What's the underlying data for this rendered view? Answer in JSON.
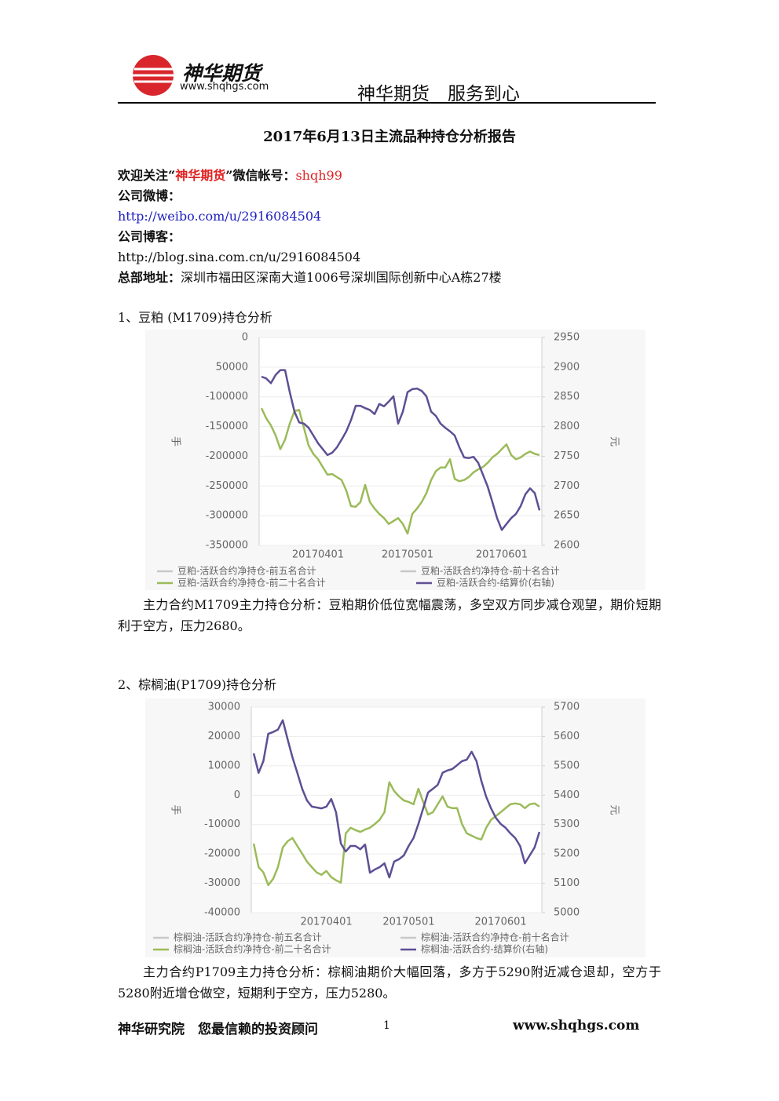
{
  "header": {
    "logo_name": "神华期货",
    "logo_url": "www.shqhgs.com",
    "slogan": "神华期货　服务到心"
  },
  "title": "2017年6月13日主流品种持仓分析报告",
  "contact": {
    "wechat_prefix": "欢迎关注“",
    "wechat_name": "神华期货",
    "wechat_mid": "”微信帐号：",
    "wechat_id": "shqh99",
    "weibo_label": "公司微博：",
    "weibo_url": "http://weibo.com/u/2916084504",
    "blog_label": "公司博客：",
    "blog_url": "http://blog.sina.com.cn/u/2916084504",
    "address_label": "总部地址：",
    "address": "深圳市福田区深南大道1006号深圳国际创新中心A栋27楼"
  },
  "sections": [
    {
      "heading": "1、豆粕 (M1709)持仓分析",
      "chart": {
        "type": "line",
        "categories": [
          null,
          null,
          null,
          null,
          null,
          null,
          null,
          null,
          null,
          null,
          null,
          null,
          "20170401",
          null,
          null,
          null,
          null,
          null,
          null,
          null,
          null,
          null,
          null,
          null,
          null,
          null,
          null,
          null,
          null,
          null,
          null,
          "20170501",
          null,
          null,
          null,
          null,
          null,
          null,
          null,
          null,
          null,
          null,
          null,
          null,
          null,
          null,
          null,
          null,
          null,
          null,
          null,
          "20170601",
          null,
          null,
          null,
          null,
          null,
          null,
          null,
          null
        ],
        "ylabel": "手",
        "y2label": "元",
        "ylim": [
          -350000,
          0
        ],
        "yticks": [
          0,
          {
            "value": -50000,
            "label": "50000"
          },
          -100000,
          -150000,
          -200000,
          -250000,
          -300000,
          -350000
        ],
        "y2lim": [
          2600,
          2950
        ],
        "y2ticks": [
          2950,
          2900,
          2850,
          2800,
          2750,
          2700,
          2650,
          2600
        ],
        "grid": true,
        "series": [
          {
            "name": "豆粕-活跃合约净持仓-前五名合计",
            "color": "#c8c8c8",
            "values": [
              null,
              null,
              null,
              null,
              null,
              null,
              null,
              null,
              null,
              null,
              null,
              null,
              null,
              null,
              null,
              null,
              null,
              null,
              null,
              null,
              null,
              null,
              null,
              null,
              null,
              null,
              null,
              null,
              null,
              null,
              null,
              null,
              null,
              null,
              null,
              null,
              null,
              null,
              null,
              null,
              null,
              null,
              null,
              null,
              null,
              null,
              null,
              null,
              null,
              null,
              null,
              null,
              null,
              null,
              null,
              null,
              null,
              null,
              null,
              null
            ]
          },
          {
            "name": "豆粕-活跃合约净持仓-前十名合计",
            "color": "#c8c8c8",
            "values": [
              null,
              null,
              null,
              null,
              null,
              null,
              null,
              null,
              null,
              null,
              null,
              null,
              null,
              null,
              null,
              null,
              null,
              null,
              null,
              null,
              null,
              null,
              null,
              null,
              null,
              null,
              null,
              null,
              null,
              null,
              null,
              null,
              null,
              null,
              null,
              null,
              null,
              null,
              null,
              null,
              null,
              null,
              null,
              null,
              null,
              null,
              null,
              null,
              null,
              null,
              null,
              null,
              null,
              null,
              null,
              null,
              null,
              null,
              null,
              null
            ]
          },
          {
            "name": "豆粕-活跃合约净持仓-前二十名合计",
            "color": "#9bbb59",
            "values": [
              -119000,
              -136000,
              -148000,
              -165000,
              -188000,
              -172000,
              -145000,
              -124000,
              -122000,
              -152000,
              -182000,
              -196000,
              -205000,
              -218000,
              -231000,
              -230000,
              -235000,
              -240000,
              -258000,
              -284000,
              -285000,
              -277000,
              -248000,
              -277000,
              -288000,
              -297000,
              -304000,
              -314000,
              -309000,
              -304000,
              -314000,
              -330000,
              -297000,
              -288000,
              -277000,
              -262000,
              -240000,
              -225000,
              -219000,
              -219000,
              -205000,
              -238000,
              -242000,
              -240000,
              -235000,
              -227000,
              -222000,
              -218000,
              -211000,
              -202000,
              -196000,
              -188000,
              -180000,
              -198000,
              -205000,
              -202000,
              -196000,
              -192000,
              -196000,
              -198000
            ]
          },
          {
            "name": "豆粕-活跃合约-结算价(右轴)",
            "color": "#5e4f94",
            "axis": "y2",
            "values": [
              2884,
              2881,
              2873,
              2887,
              2895,
              2895,
              2858,
              2825,
              2807,
              2805,
              2798,
              2785,
              2772,
              2762,
              2752,
              2756,
              2765,
              2778,
              2792,
              2811,
              2835,
              2835,
              2831,
              2828,
              2821,
              2838,
              2834,
              2842,
              2851,
              2805,
              2825,
              2858,
              2863,
              2864,
              2860,
              2851,
              2825,
              2818,
              2805,
              2798,
              2792,
              2785,
              2765,
              2748,
              2747,
              2749,
              2739,
              2719,
              2699,
              2673,
              2646,
              2626,
              2636,
              2646,
              2653,
              2666,
              2686,
              2696,
              2688,
              2659
            ]
          }
        ]
      },
      "analysis": "主力合约M1709主力持仓分析：豆粕期价低位宽幅震荡，多空双方同步减仓观望，期价短期利于空方，压力2680。"
    },
    {
      "heading": "2、棕榈油(P1709)持仓分析",
      "chart": {
        "type": "line",
        "categories": [
          null,
          null,
          null,
          null,
          null,
          null,
          null,
          null,
          null,
          null,
          null,
          null,
          null,
          null,
          null,
          "20170401",
          null,
          null,
          null,
          null,
          null,
          null,
          null,
          null,
          null,
          null,
          null,
          null,
          null,
          null,
          null,
          null,
          "20170501",
          null,
          null,
          null,
          null,
          null,
          null,
          null,
          null,
          null,
          null,
          null,
          null,
          null,
          null,
          null,
          null,
          null,
          null,
          "20170601",
          null,
          null,
          null,
          null,
          null,
          null,
          null,
          null
        ],
        "ylabel": "手",
        "y2label": "元",
        "ylim": [
          -40000,
          30000
        ],
        "yticks": [
          30000,
          20000,
          10000,
          0,
          -10000,
          -20000,
          -30000,
          -40000
        ],
        "y2lim": [
          5000,
          5700
        ],
        "y2ticks": [
          5700,
          5600,
          5500,
          5400,
          5300,
          5200,
          5100,
          5000
        ],
        "grid": true,
        "series": [
          {
            "name": "棕榈油-活跃合约净持仓-前五名合计",
            "color": "#c8c8c8",
            "values": [
              null,
              null,
              null,
              null,
              null,
              null,
              null,
              null,
              null,
              null,
              null,
              null,
              null,
              null,
              null,
              null,
              null,
              null,
              null,
              null,
              null,
              null,
              null,
              null,
              null,
              null,
              null,
              null,
              null,
              null,
              null,
              null,
              null,
              null,
              null,
              null,
              null,
              null,
              null,
              null,
              null,
              null,
              null,
              null,
              null,
              null,
              null,
              null,
              null,
              null,
              null,
              null,
              null,
              null,
              null,
              null,
              null,
              null,
              null,
              null
            ]
          },
          {
            "name": "棕榈油-活跃合约净持仓-前十名合计",
            "color": "#c8c8c8",
            "values": [
              null,
              null,
              null,
              null,
              null,
              null,
              null,
              null,
              null,
              null,
              null,
              null,
              null,
              null,
              null,
              null,
              null,
              null,
              null,
              null,
              null,
              null,
              null,
              null,
              null,
              null,
              null,
              null,
              null,
              null,
              null,
              null,
              null,
              null,
              null,
              null,
              null,
              null,
              null,
              null,
              null,
              null,
              null,
              null,
              null,
              null,
              null,
              null,
              null,
              null,
              null,
              null,
              null,
              null,
              null,
              null,
              null,
              null,
              null,
              null
            ]
          },
          {
            "name": "棕榈油-活跃合约净持仓-前二十名合计",
            "color": "#9bbb59",
            "values": [
              -16500,
              -24500,
              -26300,
              -30600,
              -28500,
              -24500,
              -17800,
              -15700,
              -14600,
              -17300,
              -19900,
              -22600,
              -24500,
              -26300,
              -27100,
              -25800,
              -27900,
              -29000,
              -29800,
              -13000,
              -11100,
              -11900,
              -12500,
              -11700,
              -11100,
              -9800,
              -8400,
              -5800,
              4400,
              1400,
              -400,
              -1800,
              -2300,
              -3100,
              2200,
              -2300,
              -6600,
              -5800,
              -3100,
              -400,
              -3900,
              -4400,
              -4400,
              -9800,
              -13000,
              -13800,
              -14600,
              -15100,
              -11100,
              -8400,
              -7100,
              -5800,
              -4400,
              -3100,
              -2800,
              -3100,
              -4400,
              -3100,
              -2800,
              -3900
            ]
          },
          {
            "name": "棕榈油-活跃合约-结算价(右轴)",
            "color": "#5e4f94",
            "axis": "y2",
            "values": [
              5542,
              5476,
              5516,
              5609,
              5615,
              5623,
              5655,
              5590,
              5529,
              5476,
              5422,
              5382,
              5361,
              5358,
              5355,
              5361,
              5387,
              5342,
              5235,
              5208,
              5227,
              5227,
              5216,
              5232,
              5136,
              5147,
              5155,
              5168,
              5120,
              5174,
              5182,
              5195,
              5227,
              5254,
              5302,
              5355,
              5409,
              5422,
              5435,
              5476,
              5484,
              5489,
              5502,
              5516,
              5521,
              5548,
              5516,
              5449,
              5395,
              5355,
              5323,
              5302,
              5289,
              5270,
              5254,
              5227,
              5168,
              5195,
              5222,
              5275
            ]
          }
        ]
      },
      "analysis": "主力合约P1709主力持仓分析：棕榈油期价大幅回落，多方于5290附近减仓退却，空方于5280附近增仓做空，短期利于空方，压力5280。"
    }
  ],
  "footer": {
    "left": "神华研究院　您最信赖的投资顾问",
    "page": "1",
    "url": "www.shqhgs.com"
  }
}
